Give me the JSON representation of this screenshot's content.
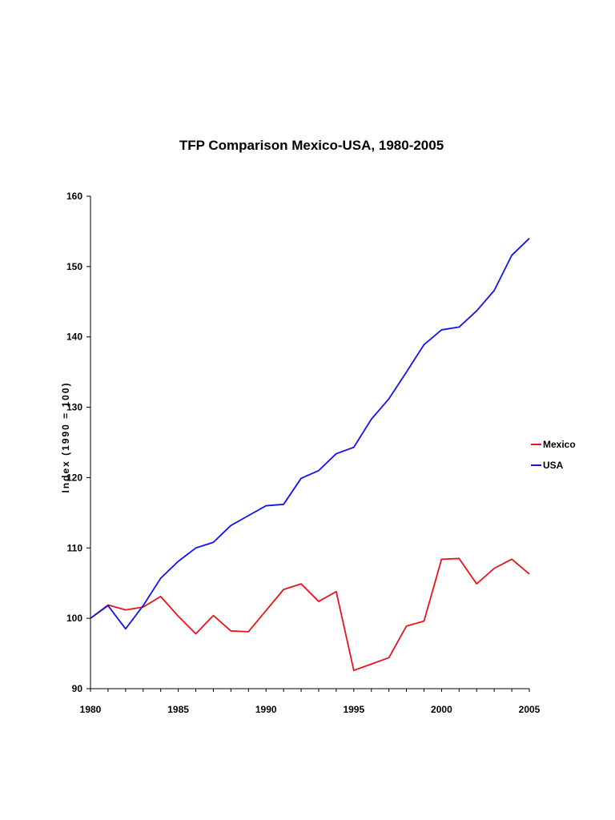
{
  "chart_data": {
    "type": "line",
    "title": "TFP Comparison Mexico-USA, 1980-2005",
    "xlabel": "",
    "ylabel": "Index (1990 = 100)",
    "xlim": [
      1980,
      2005
    ],
    "ylim": [
      90,
      160
    ],
    "x_ticks": [
      1980,
      1985,
      1990,
      1995,
      2000,
      2005
    ],
    "y_ticks": [
      90,
      100,
      110,
      120,
      130,
      140,
      150,
      160
    ],
    "grid": false,
    "legend_position": "right",
    "x": [
      1980,
      1981,
      1982,
      1983,
      1984,
      1985,
      1986,
      1987,
      1988,
      1989,
      1990,
      1991,
      1992,
      1993,
      1994,
      1995,
      1996,
      1997,
      1998,
      1999,
      2000,
      2001,
      2002,
      2003,
      2004,
      2005
    ],
    "series": [
      {
        "name": "Mexico",
        "color": "#e8141c",
        "values": [
          100,
          101.9,
          101.2,
          101.6,
          103.1,
          100.3,
          97.8,
          100.4,
          98.2,
          98.1,
          101.1,
          104.1,
          104.9,
          102.4,
          103.8,
          92.6,
          93.5,
          94.4,
          98.9,
          99.6,
          108.4,
          108.5,
          104.9,
          107.1,
          108.4,
          106.3
        ]
      },
      {
        "name": "USA",
        "color": "#1414e8",
        "values": [
          100,
          101.8,
          98.5,
          101.8,
          105.7,
          108.1,
          110.0,
          110.8,
          113.2,
          114.6,
          116.0,
          116.2,
          119.9,
          121.0,
          123.4,
          124.3,
          128.3,
          131.2,
          135.0,
          138.9,
          141.0,
          141.4,
          143.7,
          146.6,
          151.6,
          154.0
        ]
      }
    ]
  }
}
